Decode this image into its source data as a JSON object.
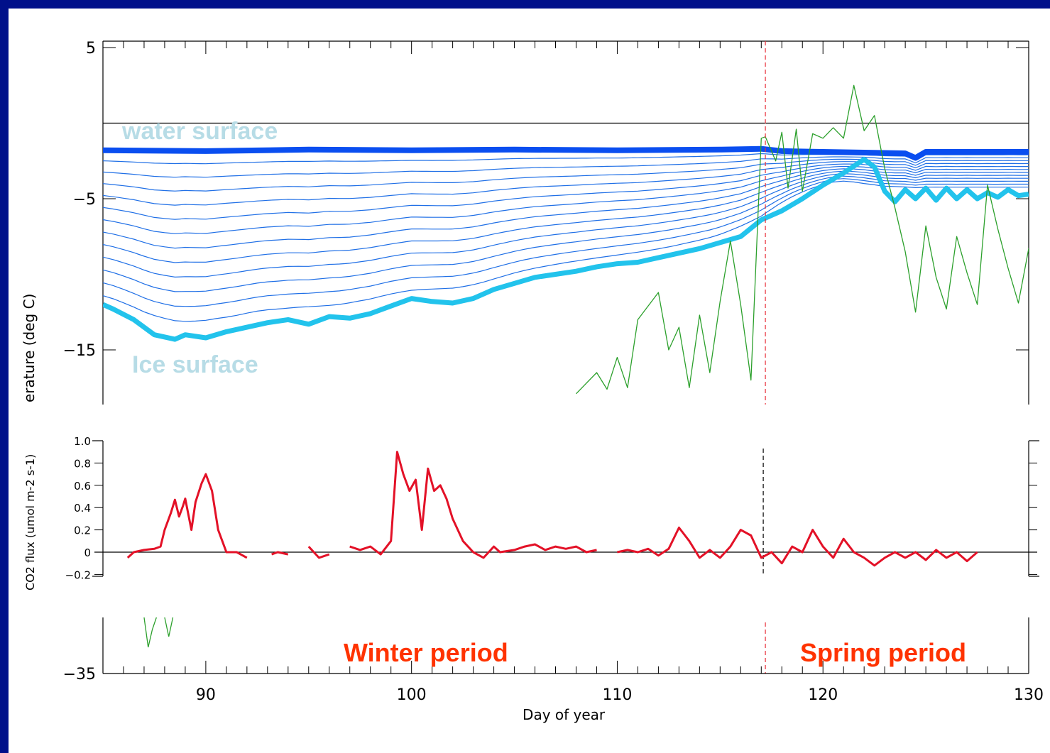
{
  "chart_data": [
    {
      "type": "line",
      "panel": "temperature",
      "ylabel": "erature (deg C)",
      "x_axis": {
        "label": "Day of year",
        "ticks": [
          90,
          100,
          110,
          120,
          130
        ],
        "range": [
          85,
          130
        ]
      },
      "y_axis_ticks": [
        5,
        -5,
        -15,
        -35
      ],
      "annotations": [
        "water surface",
        "Ice surface",
        "Winter period",
        "Spring period"
      ],
      "vertical_marker_day": 117.2,
      "zero_line": 0,
      "series": [
        {
          "color": "#0a4ef0",
          "values": [
            [
              85,
              -1.8
            ],
            [
              90,
              -1.85
            ],
            [
              95,
              -1.75
            ],
            [
              100,
              -1.8
            ],
            [
              105,
              -1.75
            ],
            [
              110,
              -1.8
            ],
            [
              115,
              -1.75
            ],
            [
              117,
              -1.7
            ],
            [
              118,
              -1.85
            ],
            [
              120,
              -1.9
            ],
            [
              122,
              -1.95
            ],
            [
              124,
              -2.0
            ],
            [
              124.5,
              -2.3
            ],
            [
              125,
              -1.9
            ],
            [
              130,
              -1.9
            ]
          ]
        },
        {
          "color": "#22c3ec",
          "values": [
            [
              85,
              -12.0
            ],
            [
              85.5,
              -12.3
            ],
            [
              86.5,
              -13.0
            ],
            [
              87.5,
              -14.0
            ],
            [
              88.5,
              -14.3
            ],
            [
              89,
              -14.0
            ],
            [
              90,
              -14.2
            ],
            [
              91,
              -13.8
            ],
            [
              92,
              -13.5
            ],
            [
              93,
              -13.2
            ],
            [
              94,
              -13.0
            ],
            [
              95,
              -13.3
            ],
            [
              96,
              -12.8
            ],
            [
              97,
              -12.9
            ],
            [
              98,
              -12.6
            ],
            [
              99,
              -12.1
            ],
            [
              100,
              -11.6
            ],
            [
              101,
              -11.8
            ],
            [
              102,
              -11.9
            ],
            [
              103,
              -11.6
            ],
            [
              104,
              -11.0
            ],
            [
              105,
              -10.6
            ],
            [
              106,
              -10.2
            ],
            [
              107,
              -10.0
            ],
            [
              108,
              -9.8
            ],
            [
              109,
              -9.5
            ],
            [
              110,
              -9.3
            ],
            [
              111,
              -9.2
            ],
            [
              112,
              -8.9
            ],
            [
              113,
              -8.6
            ],
            [
              114,
              -8.3
            ],
            [
              115,
              -7.9
            ],
            [
              116,
              -7.5
            ],
            [
              117,
              -6.4
            ],
            [
              118,
              -5.8
            ],
            [
              119,
              -5.0
            ],
            [
              120,
              -4.1
            ],
            [
              121,
              -3.3
            ],
            [
              122,
              -2.4
            ],
            [
              122.5,
              -2.9
            ],
            [
              123,
              -4.5
            ],
            [
              123.5,
              -5.2
            ],
            [
              124,
              -4.4
            ],
            [
              124.5,
              -5.0
            ],
            [
              125,
              -4.3
            ],
            [
              125.5,
              -5.1
            ],
            [
              126,
              -4.3
            ],
            [
              126.5,
              -5.0
            ],
            [
              127,
              -4.4
            ],
            [
              127.5,
              -5.0
            ],
            [
              128,
              -4.6
            ],
            [
              128.5,
              -4.9
            ],
            [
              129,
              -4.4
            ],
            [
              129.5,
              -4.8
            ],
            [
              130,
              -4.7
            ]
          ]
        },
        {
          "color": "#2ca02c",
          "values": [
            [
              108,
              -17.9
            ],
            [
              109,
              -16.5
            ],
            [
              109.5,
              -17.6
            ],
            [
              110,
              -15.5
            ],
            [
              110.5,
              -17.5
            ],
            [
              111,
              -13.0
            ],
            [
              112,
              -11.2
            ],
            [
              112.5,
              -15.0
            ],
            [
              113,
              -13.5
            ],
            [
              113.5,
              -17.5
            ],
            [
              114,
              -12.7
            ],
            [
              114.5,
              -16.5
            ],
            [
              115,
              -11.8
            ],
            [
              115.5,
              -7.8
            ],
            [
              116,
              -12.0
            ],
            [
              116.5,
              -17.0
            ],
            [
              117,
              -1.0
            ],
            [
              117.2,
              -0.9
            ],
            [
              117.7,
              -2.5
            ],
            [
              118,
              -0.6
            ],
            [
              118.3,
              -4.3
            ],
            [
              118.7,
              -0.4
            ],
            [
              119,
              -4.5
            ],
            [
              119.5,
              -0.7
            ],
            [
              120,
              -1.0
            ],
            [
              120.5,
              -0.3
            ],
            [
              121,
              -1.0
            ],
            [
              121.5,
              2.5
            ],
            [
              122,
              -0.5
            ],
            [
              122.5,
              0.5
            ],
            [
              123,
              -3.0
            ],
            [
              123.5,
              -5.6
            ],
            [
              124,
              -8.5
            ],
            [
              124.5,
              -12.5
            ],
            [
              125,
              -6.8
            ],
            [
              125.5,
              -10.2
            ],
            [
              126,
              -12.3
            ],
            [
              126.5,
              -7.5
            ],
            [
              127,
              -9.9
            ],
            [
              127.5,
              -12.0
            ],
            [
              128,
              -4.1
            ],
            [
              128.5,
              -7.0
            ],
            [
              129,
              -9.6
            ],
            [
              129.5,
              -11.9
            ],
            [
              130,
              -8.3
            ],
            [
              130.3,
              -10.0
            ]
          ]
        }
      ]
    },
    {
      "type": "line",
      "panel": "co2_flux",
      "ylabel": "CO2 flux (umol m-2 s-1)",
      "y_axis_ticks": [
        1.0,
        0.8,
        0.6,
        0.4,
        0.2,
        0,
        -0.2
      ],
      "zero_line": 0,
      "vertical_marker_day": 117.2,
      "series": [
        {
          "color": "#e31127",
          "values": [
            [
              86.2,
              -0.05
            ],
            [
              86.5,
              0.0
            ],
            [
              87,
              0.02
            ],
            [
              87.5,
              0.03
            ],
            [
              87.8,
              0.05
            ],
            [
              88,
              0.2
            ],
            [
              88.3,
              0.35
            ],
            [
              88.5,
              0.47
            ],
            [
              88.7,
              0.32
            ],
            [
              88.9,
              0.42
            ],
            [
              89,
              0.48
            ],
            [
              89.3,
              0.2
            ],
            [
              89.5,
              0.45
            ],
            [
              89.8,
              0.62
            ],
            [
              90,
              0.7
            ],
            [
              90.3,
              0.55
            ],
            [
              90.6,
              0.2
            ],
            [
              91,
              0.0
            ],
            [
              91.5,
              0.0
            ],
            [
              92,
              -0.05
            ],
            [
              93.2,
              -0.02
            ],
            [
              93.5,
              0.0
            ],
            [
              94,
              -0.02
            ],
            [
              95,
              0.05
            ],
            [
              95.5,
              -0.05
            ],
            [
              96,
              -0.02
            ],
            [
              97,
              0.05
            ],
            [
              97.5,
              0.02
            ],
            [
              98,
              0.05
            ],
            [
              98.5,
              -0.02
            ],
            [
              99,
              0.1
            ],
            [
              99.3,
              0.9
            ],
            [
              99.6,
              0.7
            ],
            [
              99.9,
              0.55
            ],
            [
              100.2,
              0.65
            ],
            [
              100.5,
              0.2
            ],
            [
              100.8,
              0.75
            ],
            [
              101.1,
              0.55
            ],
            [
              101.4,
              0.6
            ],
            [
              101.7,
              0.48
            ],
            [
              102,
              0.3
            ],
            [
              102.5,
              0.1
            ],
            [
              103,
              0.0
            ],
            [
              103.5,
              -0.05
            ],
            [
              104,
              0.05
            ],
            [
              104.3,
              0.0
            ],
            [
              105,
              0.02
            ],
            [
              105.5,
              0.05
            ],
            [
              106,
              0.07
            ],
            [
              106.5,
              0.02
            ],
            [
              107,
              0.05
            ],
            [
              107.5,
              0.03
            ],
            [
              108,
              0.05
            ],
            [
              108.5,
              0.0
            ],
            [
              109,
              0.02
            ],
            [
              110,
              0.0
            ],
            [
              110.5,
              0.02
            ],
            [
              111,
              0.0
            ],
            [
              111.5,
              0.03
            ],
            [
              112,
              -0.03
            ],
            [
              112.5,
              0.03
            ],
            [
              113,
              0.22
            ],
            [
              113.5,
              0.1
            ],
            [
              114,
              -0.05
            ],
            [
              114.5,
              0.02
            ],
            [
              115,
              -0.05
            ],
            [
              115.5,
              0.05
            ],
            [
              116,
              0.2
            ],
            [
              116.5,
              0.15
            ],
            [
              117,
              -0.05
            ],
            [
              117.5,
              0.0
            ],
            [
              118,
              -0.1
            ],
            [
              118.5,
              0.05
            ],
            [
              119,
              0.0
            ],
            [
              119.5,
              0.2
            ],
            [
              120,
              0.05
            ],
            [
              120.5,
              -0.05
            ],
            [
              121,
              0.12
            ],
            [
              121.5,
              0.0
            ],
            [
              122,
              -0.05
            ],
            [
              122.5,
              -0.12
            ],
            [
              123,
              -0.05
            ],
            [
              123.5,
              0.0
            ],
            [
              124,
              -0.05
            ],
            [
              124.5,
              0.0
            ],
            [
              125,
              -0.07
            ],
            [
              125.5,
              0.02
            ],
            [
              126,
              -0.05
            ],
            [
              126.5,
              0.0
            ],
            [
              127,
              -0.08
            ],
            [
              127.5,
              0.0
            ]
          ]
        }
      ]
    }
  ],
  "annotation_colors": {
    "light_blue": "#b7dce6",
    "red_label": "#ff3300"
  }
}
